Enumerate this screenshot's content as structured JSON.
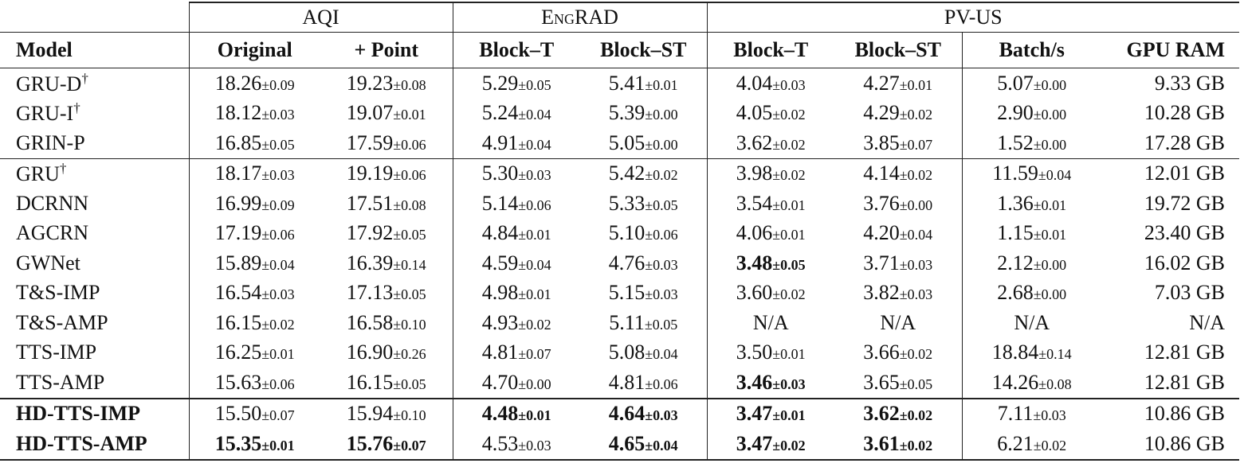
{
  "table": {
    "groups": [
      "AQI",
      "EngRAD",
      "PV-US"
    ],
    "header": [
      "Model",
      "Original",
      "+ Point",
      "Block–T",
      "Block–ST",
      "Block–T",
      "Block–ST",
      "Batch/s",
      "GPU RAM"
    ],
    "sections": [
      [
        {
          "model": "GRU-D",
          "mark": "†",
          "cells": [
            {
              "mean": "18.26",
              "std": "±0.09"
            },
            {
              "mean": "19.23",
              "std": "±0.08"
            },
            {
              "mean": "5.29",
              "std": "±0.05"
            },
            {
              "mean": "5.41",
              "std": "±0.01"
            },
            {
              "mean": "4.04",
              "std": "±0.03"
            },
            {
              "mean": "4.27",
              "std": "±0.01"
            },
            {
              "mean": "5.07",
              "std": "±0.00"
            },
            "9.33 GB"
          ]
        },
        {
          "model": "GRU-I",
          "mark": "†",
          "cells": [
            {
              "mean": "18.12",
              "std": "±0.03"
            },
            {
              "mean": "19.07",
              "std": "±0.01"
            },
            {
              "mean": "5.24",
              "std": "±0.04"
            },
            {
              "mean": "5.39",
              "std": "±0.00"
            },
            {
              "mean": "4.05",
              "std": "±0.02"
            },
            {
              "mean": "4.29",
              "std": "±0.02"
            },
            {
              "mean": "2.90",
              "std": "±0.00"
            },
            "10.28 GB"
          ]
        },
        {
          "model": "GRIN-P",
          "cells": [
            {
              "mean": "16.85",
              "std": "±0.05"
            },
            {
              "mean": "17.59",
              "std": "±0.06"
            },
            {
              "mean": "4.91",
              "std": "±0.04"
            },
            {
              "mean": "5.05",
              "std": "±0.00"
            },
            {
              "mean": "3.62",
              "std": "±0.02"
            },
            {
              "mean": "3.85",
              "std": "±0.07"
            },
            {
              "mean": "1.52",
              "std": "±0.00"
            },
            "17.28 GB"
          ]
        }
      ],
      [
        {
          "model": "GRU",
          "mark": "†",
          "cells": [
            {
              "mean": "18.17",
              "std": "±0.03"
            },
            {
              "mean": "19.19",
              "std": "±0.06"
            },
            {
              "mean": "5.30",
              "std": "±0.03"
            },
            {
              "mean": "5.42",
              "std": "±0.02"
            },
            {
              "mean": "3.98",
              "std": "±0.02"
            },
            {
              "mean": "4.14",
              "std": "±0.02"
            },
            {
              "mean": "11.59",
              "std": "±0.04"
            },
            "12.01 GB"
          ]
        },
        {
          "model": "DCRNN",
          "cells": [
            {
              "mean": "16.99",
              "std": "±0.09"
            },
            {
              "mean": "17.51",
              "std": "±0.08"
            },
            {
              "mean": "5.14",
              "std": "±0.06"
            },
            {
              "mean": "5.33",
              "std": "±0.05"
            },
            {
              "mean": "3.54",
              "std": "±0.01"
            },
            {
              "mean": "3.76",
              "std": "±0.00"
            },
            {
              "mean": "1.36",
              "std": "±0.01"
            },
            "19.72 GB"
          ]
        },
        {
          "model": "AGCRN",
          "cells": [
            {
              "mean": "17.19",
              "std": "±0.06"
            },
            {
              "mean": "17.92",
              "std": "±0.05"
            },
            {
              "mean": "4.84",
              "std": "±0.01"
            },
            {
              "mean": "5.10",
              "std": "±0.06"
            },
            {
              "mean": "4.06",
              "std": "±0.01"
            },
            {
              "mean": "4.20",
              "std": "±0.04"
            },
            {
              "mean": "1.15",
              "std": "±0.01"
            },
            "23.40 GB"
          ]
        },
        {
          "model": "GWNet",
          "cells": [
            {
              "mean": "15.89",
              "std": "±0.04"
            },
            {
              "mean": "16.39",
              "std": "±0.14"
            },
            {
              "mean": "4.59",
              "std": "±0.04"
            },
            {
              "mean": "4.76",
              "std": "±0.03"
            },
            {
              "mean": "3.48",
              "std": "±0.05",
              "bold": true
            },
            {
              "mean": "3.71",
              "std": "±0.03"
            },
            {
              "mean": "2.12",
              "std": "±0.00"
            },
            "16.02 GB"
          ]
        },
        {
          "model": "T&S-IMP",
          "cells": [
            {
              "mean": "16.54",
              "std": "±0.03"
            },
            {
              "mean": "17.13",
              "std": "±0.05"
            },
            {
              "mean": "4.98",
              "std": "±0.01"
            },
            {
              "mean": "5.15",
              "std": "±0.03"
            },
            {
              "mean": "3.60",
              "std": "±0.02"
            },
            {
              "mean": "3.82",
              "std": "±0.03"
            },
            {
              "mean": "2.68",
              "std": "±0.00"
            },
            "7.03 GB"
          ]
        },
        {
          "model": "T&S-AMP",
          "cells": [
            {
              "mean": "16.15",
              "std": "±0.02"
            },
            {
              "mean": "16.58",
              "std": "±0.10"
            },
            {
              "mean": "4.93",
              "std": "±0.02"
            },
            {
              "mean": "5.11",
              "std": "±0.05"
            },
            "N/A",
            "N/A",
            "N/A",
            "N/A"
          ]
        },
        {
          "model": "TTS-IMP",
          "cells": [
            {
              "mean": "16.25",
              "std": "±0.01"
            },
            {
              "mean": "16.90",
              "std": "±0.26"
            },
            {
              "mean": "4.81",
              "std": "±0.07"
            },
            {
              "mean": "5.08",
              "std": "±0.04"
            },
            {
              "mean": "3.50",
              "std": "±0.01"
            },
            {
              "mean": "3.66",
              "std": "±0.02"
            },
            {
              "mean": "18.84",
              "std": "±0.14"
            },
            "12.81 GB"
          ]
        },
        {
          "model": "TTS-AMP",
          "cells": [
            {
              "mean": "15.63",
              "std": "±0.06"
            },
            {
              "mean": "16.15",
              "std": "±0.05"
            },
            {
              "mean": "4.70",
              "std": "±0.00"
            },
            {
              "mean": "4.81",
              "std": "±0.06"
            },
            {
              "mean": "3.46",
              "std": "±0.03",
              "bold": true
            },
            {
              "mean": "3.65",
              "std": "±0.05"
            },
            {
              "mean": "14.26",
              "std": "±0.08"
            },
            "12.81 GB"
          ]
        }
      ],
      [
        {
          "model": "HD-TTS-IMP",
          "bold": true,
          "cells": [
            {
              "mean": "15.50",
              "std": "±0.07"
            },
            {
              "mean": "15.94",
              "std": "±0.10"
            },
            {
              "mean": "4.48",
              "std": "±0.01",
              "bold": true
            },
            {
              "mean": "4.64",
              "std": "±0.03",
              "bold": true
            },
            {
              "mean": "3.47",
              "std": "±0.01",
              "bold": true
            },
            {
              "mean": "3.62",
              "std": "±0.02",
              "bold": true
            },
            {
              "mean": "7.11",
              "std": "±0.03"
            },
            "10.86 GB"
          ]
        },
        {
          "model": "HD-TTS-AMP",
          "bold": true,
          "cells": [
            {
              "mean": "15.35",
              "std": "±0.01",
              "bold": true
            },
            {
              "mean": "15.76",
              "std": "±0.07",
              "bold": true
            },
            {
              "mean": "4.53",
              "std": "±0.03"
            },
            {
              "mean": "4.65",
              "std": "±0.04",
              "bold": true
            },
            {
              "mean": "3.47",
              "std": "±0.02",
              "bold": true
            },
            {
              "mean": "3.61",
              "std": "±0.02",
              "bold": true
            },
            {
              "mean": "6.21",
              "std": "±0.02"
            },
            "10.86 GB"
          ]
        }
      ]
    ]
  }
}
